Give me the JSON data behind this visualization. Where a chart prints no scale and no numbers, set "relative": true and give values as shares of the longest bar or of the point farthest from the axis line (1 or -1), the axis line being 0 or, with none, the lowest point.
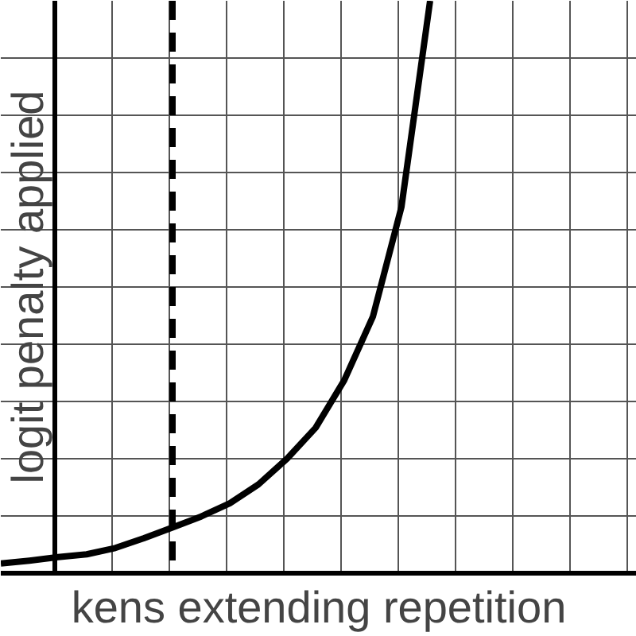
{
  "chart_data": {
    "type": "line",
    "relative": true,
    "xlabel": "kens extending repetition",
    "ylabel": "logit penalty applied",
    "categories": [
      null,
      null,
      null,
      null,
      null,
      null,
      null,
      null,
      null,
      null,
      null,
      null,
      null,
      null,
      null,
      null
    ],
    "series": [
      {
        "color": "#000000",
        "values": [
          0.017,
          0.022,
          0.028,
          0.033,
          0.044,
          0.061,
          0.08,
          0.099,
          0.122,
          0.155,
          0.2,
          0.254,
          0.337,
          0.448,
          0.64,
          1.0
        ]
      }
    ],
    "grid": true,
    "marker": "none",
    "line_style": "solid"
  }
}
